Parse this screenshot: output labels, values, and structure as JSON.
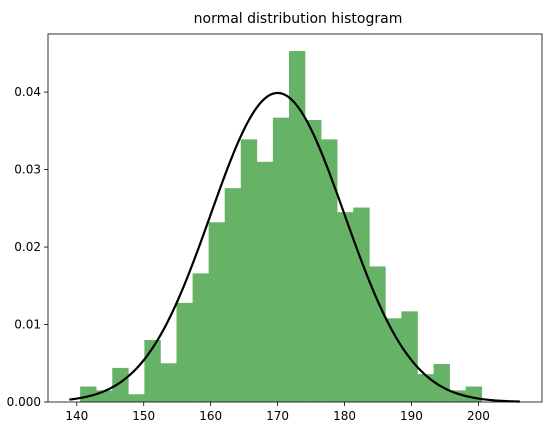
{
  "chart_data": {
    "type": "bar",
    "title": "normal distribution histogram",
    "xlabel": "",
    "ylabel": "",
    "xlim": [
      135.7,
      209.5
    ],
    "ylim": [
      0,
      0.0475
    ],
    "bin_edges": [
      138.1,
      140.5,
      142.9,
      145.3,
      147.7,
      150.1,
      152.5,
      154.9,
      157.3,
      159.7,
      162.1,
      164.5,
      166.9,
      169.3,
      171.7,
      174.1,
      176.5,
      178.9,
      181.3,
      183.7,
      186.1,
      188.5,
      190.9,
      193.3,
      195.7,
      198.1,
      200.5
    ],
    "values": [
      0.0,
      0.002,
      0.0015,
      0.0044,
      0.001,
      0.008,
      0.005,
      0.0128,
      0.0166,
      0.0232,
      0.0276,
      0.0339,
      0.031,
      0.0367,
      0.0453,
      0.0364,
      0.0339,
      0.0245,
      0.0251,
      0.0175,
      0.0108,
      0.0117,
      0.0036,
      0.0049,
      0.0015,
      0.002
    ],
    "x_ticks": [
      "140",
      "150",
      "160",
      "170",
      "180",
      "190",
      "200"
    ],
    "y_ticks": [
      "0.000",
      "0.01",
      "0.02",
      "0.03",
      "0.04"
    ],
    "bar_color": "#66b266",
    "curve": {
      "type": "normal_pdf",
      "mean": 170,
      "std": 10,
      "x_range": [
        138.9,
        206.2
      ],
      "color": "#000000"
    }
  }
}
